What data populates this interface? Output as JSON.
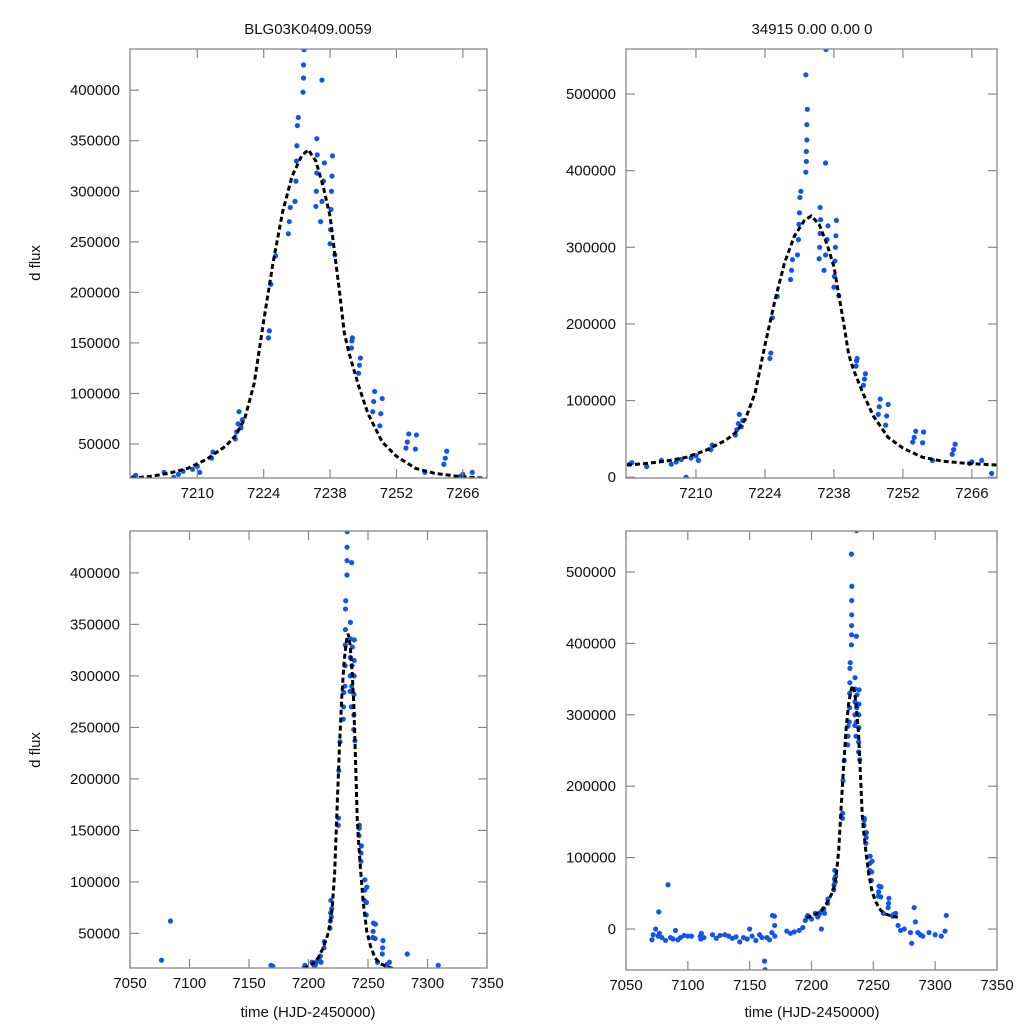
{
  "colors": {
    "points": "#1155ee",
    "model": "#000000",
    "frame": "#888888"
  },
  "chart_data": [
    {
      "type": "scatter",
      "panel": "top-left",
      "title": "BLG03K0409.0059",
      "xlabel": "",
      "ylabel": "d flux",
      "xlim": [
        7195.8,
        7271.1
      ],
      "ylim": [
        16400,
        440700
      ],
      "xticks": [
        7210,
        7224,
        7238,
        7252,
        7266
      ],
      "yticks": [
        50000,
        100000,
        150000,
        200000,
        250000,
        300000,
        350000,
        400000
      ]
    },
    {
      "type": "scatter",
      "panel": "top-right",
      "title": "34915  0.00  0.00  0",
      "xlabel": "",
      "ylabel": "",
      "xlim": [
        7195.8,
        7271.1
      ],
      "ylim": [
        -1000,
        558700
      ],
      "xticks": [
        7210,
        7224,
        7238,
        7252,
        7266
      ],
      "yticks": [
        0,
        100000,
        200000,
        300000,
        400000,
        500000
      ]
    },
    {
      "type": "scatter",
      "panel": "bottom-left",
      "title": "",
      "xlabel": "time (HJD-2450000)",
      "ylabel": "d flux",
      "xlim": [
        7050,
        7350
      ],
      "ylim": [
        16400,
        440700
      ],
      "xticks": [
        7050,
        7100,
        7150,
        7200,
        7250,
        7300,
        7350
      ],
      "yticks": [
        50000,
        100000,
        150000,
        200000,
        250000,
        300000,
        350000,
        400000
      ]
    },
    {
      "type": "scatter",
      "panel": "bottom-right",
      "title": "",
      "xlabel": "time (HJD-2450000)",
      "ylabel": "",
      "xlim": [
        7050,
        7350
      ],
      "ylim": [
        -57400,
        557400
      ],
      "xticks": [
        7050,
        7100,
        7150,
        7200,
        7250,
        7300,
        7350
      ],
      "yticks": [
        0,
        100000,
        200000,
        300000,
        400000,
        500000
      ]
    }
  ],
  "series": {
    "observations": [
      [
        7071,
        -15000
      ],
      [
        7072,
        -8000
      ],
      [
        7074,
        0
      ],
      [
        7076,
        -10000
      ],
      [
        7076.5,
        24000
      ],
      [
        7077,
        -6000
      ],
      [
        7079,
        -12000
      ],
      [
        7082,
        -16000
      ],
      [
        7084,
        62000
      ],
      [
        7086,
        -12000
      ],
      [
        7088,
        -14000
      ],
      [
        7090,
        -2000
      ],
      [
        7092,
        -15000
      ],
      [
        7094,
        -12000
      ],
      [
        7097,
        -9000
      ],
      [
        7100,
        -10000
      ],
      [
        7103,
        -10000
      ],
      [
        7110,
        -10000
      ],
      [
        7110.5,
        -14000
      ],
      [
        7111,
        -6000
      ],
      [
        7113,
        -12000
      ],
      [
        7120,
        -8000
      ],
      [
        7123,
        -13000
      ],
      [
        7126,
        -9000
      ],
      [
        7130,
        -8000
      ],
      [
        7133,
        -10000
      ],
      [
        7136,
        -13000
      ],
      [
        7139,
        -11000
      ],
      [
        7142,
        -18000
      ],
      [
        7145,
        -12000
      ],
      [
        7148,
        -14000
      ],
      [
        7150,
        0
      ],
      [
        7152,
        -10000
      ],
      [
        7155,
        -16000
      ],
      [
        7158,
        -8000
      ],
      [
        7160,
        -12000
      ],
      [
        7162,
        -45000
      ],
      [
        7162.5,
        -57000
      ],
      [
        7164,
        -12000
      ],
      [
        7166,
        -15000
      ],
      [
        7168,
        -5000
      ],
      [
        7168.5,
        19000
      ],
      [
        7170,
        18000
      ],
      [
        7170.2,
        5000
      ],
      [
        7170.4,
        -10000
      ],
      [
        7180,
        -3000
      ],
      [
        7183,
        -6000
      ],
      [
        7186,
        -4000
      ],
      [
        7190,
        -2000
      ],
      [
        7193,
        2000
      ],
      [
        7195,
        12000
      ],
      [
        7196.5,
        17000
      ],
      [
        7197,
        19000
      ],
      [
        7200,
        14000
      ],
      [
        7203,
        22000
      ],
      [
        7205,
        17000
      ],
      [
        7206,
        20000
      ],
      [
        7207,
        23000
      ],
      [
        7208,
        0
      ],
      [
        7209,
        25000
      ],
      [
        7210,
        28000
      ],
      [
        7210.5,
        22000
      ],
      [
        7213,
        36000
      ],
      [
        7213.3,
        42000
      ],
      [
        7218,
        55000
      ],
      [
        7218.3,
        62000
      ],
      [
        7218.6,
        70000
      ],
      [
        7218.8,
        82000
      ],
      [
        7219.2,
        66000
      ],
      [
        7219.5,
        74000
      ],
      [
        7225,
        155000
      ],
      [
        7225.2,
        162000
      ],
      [
        7225.5,
        208000
      ],
      [
        7226.5,
        236000
      ],
      [
        7229.2,
        258000
      ],
      [
        7229.4,
        270000
      ],
      [
        7229.6,
        284000
      ],
      [
        7230.6,
        290000
      ],
      [
        7230.8,
        310000
      ],
      [
        7230.9,
        330000
      ],
      [
        7231,
        345000
      ],
      [
        7231.1,
        365000
      ],
      [
        7231.3,
        373000
      ],
      [
        7232.3,
        398000
      ],
      [
        7232.4,
        412000
      ],
      [
        7232.4,
        425000
      ],
      [
        7232.5,
        440000
      ],
      [
        7232.5,
        460000
      ],
      [
        7232.6,
        480000
      ],
      [
        7232.3,
        525000
      ],
      [
        7235,
        285000
      ],
      [
        7235.1,
        300000
      ],
      [
        7235.2,
        318000
      ],
      [
        7235.3,
        336000
      ],
      [
        7235.2,
        352000
      ],
      [
        7236.3,
        410000
      ],
      [
        7236.4,
        558000
      ],
      [
        7236,
        270000
      ],
      [
        7236.3,
        290000
      ],
      [
        7236.6,
        310000
      ],
      [
        7236.8,
        328000
      ],
      [
        7238,
        248000
      ],
      [
        7238.1,
        262000
      ],
      [
        7238.2,
        282000
      ],
      [
        7238.3,
        300000
      ],
      [
        7238.4,
        315000
      ],
      [
        7238.5,
        335000
      ],
      [
        7239,
        237000
      ],
      [
        7242.5,
        145000
      ],
      [
        7242.6,
        152000
      ],
      [
        7242.7,
        155000
      ],
      [
        7244,
        120000
      ],
      [
        7244.2,
        128000
      ],
      [
        7244.4,
        135000
      ],
      [
        7247,
        82000
      ],
      [
        7247.2,
        92000
      ],
      [
        7247.4,
        102000
      ],
      [
        7248.5,
        68000
      ],
      [
        7248.7,
        80000
      ],
      [
        7249,
        95000
      ],
      [
        7254,
        46000
      ],
      [
        7254.3,
        52000
      ],
      [
        7254.6,
        60000
      ],
      [
        7256,
        45000
      ],
      [
        7256.2,
        59000
      ],
      [
        7258,
        22000
      ],
      [
        7262,
        30000
      ],
      [
        7262.3,
        36000
      ],
      [
        7262.6,
        43000
      ],
      [
        7265.5,
        18000
      ],
      [
        7266,
        20000
      ],
      [
        7268,
        22000
      ],
      [
        7270,
        5000
      ],
      [
        7272,
        -2000
      ],
      [
        7275,
        0
      ],
      [
        7280,
        -5000
      ],
      [
        7281,
        -20000
      ],
      [
        7283,
        30000
      ],
      [
        7284,
        10000
      ],
      [
        7286,
        -5000
      ],
      [
        7288,
        -8000
      ],
      [
        7290,
        -10000
      ],
      [
        7295,
        -5000
      ],
      [
        7300,
        -8000
      ],
      [
        7305,
        -10000
      ],
      [
        7308,
        -3000
      ],
      [
        7309,
        19000
      ]
    ],
    "model": [
      [
        7196,
        16000
      ],
      [
        7200,
        18000
      ],
      [
        7204,
        21000
      ],
      [
        7208,
        26000
      ],
      [
        7212,
        35000
      ],
      [
        7216,
        48000
      ],
      [
        7218,
        58000
      ],
      [
        7220,
        75000
      ],
      [
        7222,
        110000
      ],
      [
        7224,
        172000
      ],
      [
        7226,
        230000
      ],
      [
        7228,
        280000
      ],
      [
        7230,
        315000
      ],
      [
        7232,
        335000
      ],
      [
        7233.4,
        341000
      ],
      [
        7235,
        330000
      ],
      [
        7236.6,
        304000
      ],
      [
        7238,
        275000
      ],
      [
        7240,
        200000
      ],
      [
        7241,
        160000
      ],
      [
        7242,
        140000
      ],
      [
        7244,
        108000
      ],
      [
        7246,
        80000
      ],
      [
        7249,
        52000
      ],
      [
        7252,
        38000
      ],
      [
        7256,
        26000
      ],
      [
        7260,
        21000
      ],
      [
        7265,
        18000
      ],
      [
        7268,
        17000
      ],
      [
        7271,
        16000
      ]
    ]
  }
}
